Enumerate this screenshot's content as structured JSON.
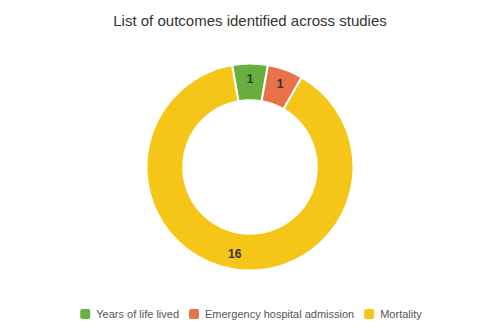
{
  "chart_data": {
    "type": "pie",
    "title": "List of outcomes identified across studies",
    "categories": [
      "Years of life lived",
      "Emergency hospital admission",
      "Mortality"
    ],
    "values": [
      1,
      1,
      16
    ],
    "colors": [
      "#6AAF3D",
      "#E8734A",
      "#F5C518"
    ],
    "data_labels": true,
    "legend": "bottom"
  }
}
